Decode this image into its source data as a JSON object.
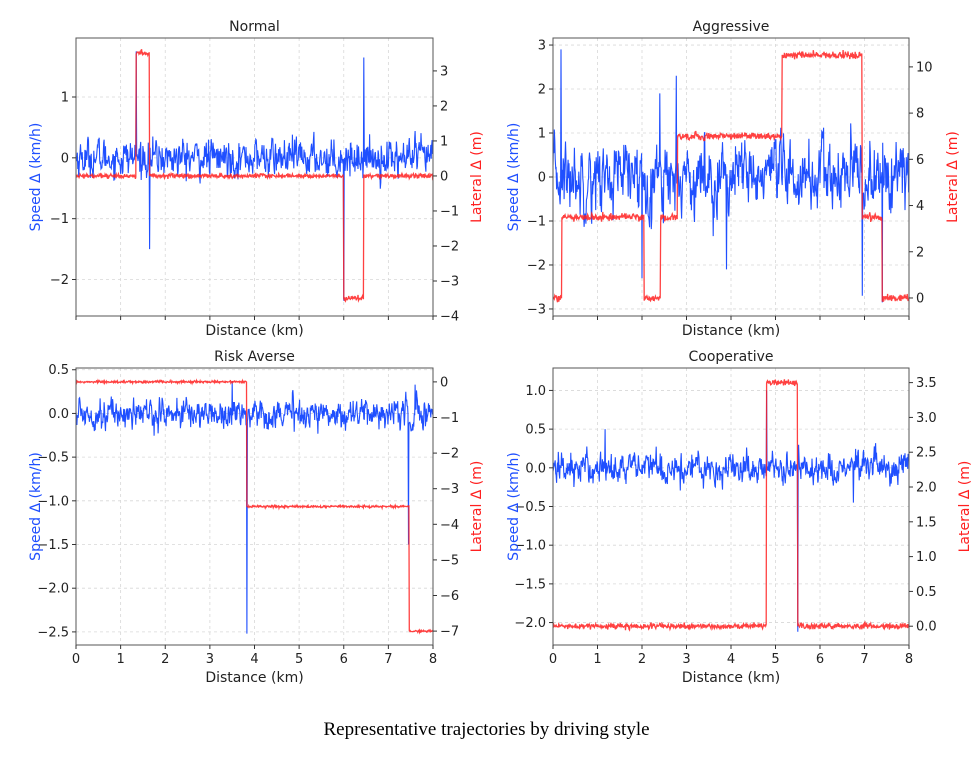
{
  "figure": {
    "caption": "Representative trajectories by driving style",
    "colors": {
      "speed": "#1f4fff",
      "lateral": "#ff2020",
      "axis": "#555555",
      "grid": "#d8d8d8"
    }
  },
  "chart_data": [
    {
      "type": "line",
      "title": "Normal",
      "xlabel": "Distance (km)",
      "ylabel": "Speed Δ (km/h)",
      "y2label": "Lateral Δ (m)",
      "xlim": [
        0,
        8
      ],
      "ylim": [
        -2.6,
        1.97
      ],
      "y2lim": [
        -4.0,
        3.94
      ],
      "xticks": [
        0,
        1,
        2,
        3,
        4,
        5,
        6,
        7,
        8
      ],
      "xtick_labels_visible": false,
      "yticks": [
        -2,
        -1,
        0,
        1
      ],
      "ytick_labels": [
        "−2",
        "−1",
        "0",
        "1"
      ],
      "y2ticks": [
        -4,
        -3,
        -2,
        -1,
        0,
        1,
        2,
        3
      ],
      "y2tick_labels": [
        "−4",
        "−3",
        "−2",
        "−1",
        "0",
        "1",
        "2",
        "3"
      ],
      "grid": true,
      "series": [
        {
          "name": "Speed Δ",
          "axis": "left",
          "color": "#1f4fff",
          "noise_amplitude": 0.25,
          "baseline": 0.0,
          "spikes": [
            {
              "x": 1.35,
              "y": 1.75
            },
            {
              "x": 1.65,
              "y": -1.5
            },
            {
              "x": 6.0,
              "y": -2.35
            },
            {
              "x": 6.45,
              "y": 1.65
            }
          ]
        },
        {
          "name": "Lateral Δ",
          "axis": "right",
          "color": "#ff2020",
          "noise_amplitude": 0.06,
          "segments": [
            {
              "x0": 0.0,
              "x1": 1.35,
              "y": 0.0
            },
            {
              "x0": 1.35,
              "x1": 1.65,
              "y": 3.5
            },
            {
              "x0": 1.65,
              "x1": 6.0,
              "y": 0.0
            },
            {
              "x0": 6.0,
              "x1": 6.45,
              "y": -3.5
            },
            {
              "x0": 6.45,
              "x1": 8.0,
              "y": 0.0
            }
          ]
        }
      ]
    },
    {
      "type": "line",
      "title": "Aggressive",
      "xlabel": "Distance (km)",
      "ylabel": "Speed Δ (km/h)",
      "y2label": "Lateral Δ (m)",
      "xlim": [
        0,
        8
      ],
      "ylim": [
        -3.16,
        3.16
      ],
      "y2lim": [
        -0.78,
        11.25
      ],
      "xticks": [
        0,
        1,
        2,
        3,
        4,
        5,
        6,
        7,
        8
      ],
      "xtick_labels_visible": false,
      "yticks": [
        -3,
        -2,
        -1,
        0,
        1,
        2,
        3
      ],
      "ytick_labels": [
        "−3",
        "−2",
        "−1",
        "0",
        "1",
        "2",
        "3"
      ],
      "y2ticks": [
        0,
        2,
        4,
        6,
        8,
        10
      ],
      "y2tick_labels": [
        "0",
        "2",
        "4",
        "6",
        "8",
        "10"
      ],
      "grid": true,
      "series": [
        {
          "name": "Speed Δ",
          "axis": "left",
          "color": "#1f4fff",
          "noise_amplitude": 0.65,
          "baseline": 0.0,
          "spikes": [
            {
              "x": 0.18,
              "y": 2.9
            },
            {
              "x": 2.0,
              "y": -2.3
            },
            {
              "x": 2.4,
              "y": 1.9
            },
            {
              "x": 2.77,
              "y": 2.3
            },
            {
              "x": 3.9,
              "y": -2.1
            },
            {
              "x": 6.95,
              "y": -2.7
            },
            {
              "x": 7.4,
              "y": -2.85
            }
          ]
        },
        {
          "name": "Lateral Δ",
          "axis": "right",
          "color": "#ff2020",
          "noise_amplitude": 0.15,
          "segments": [
            {
              "x0": 0.0,
              "x1": 0.2,
              "y": 0.0
            },
            {
              "x0": 0.2,
              "x1": 2.05,
              "y": 3.5
            },
            {
              "x0": 2.05,
              "x1": 2.42,
              "y": 0.0
            },
            {
              "x0": 2.42,
              "x1": 2.8,
              "y": 3.5
            },
            {
              "x0": 2.8,
              "x1": 5.15,
              "y": 7.0
            },
            {
              "x0": 5.15,
              "x1": 6.95,
              "y": 10.5
            },
            {
              "x0": 6.95,
              "x1": 7.4,
              "y": 3.5
            },
            {
              "x0": 7.4,
              "x1": 8.0,
              "y": 0.0
            }
          ]
        }
      ]
    },
    {
      "type": "line",
      "title": "Risk Averse",
      "xlabel": "Distance (km)",
      "ylabel": "Speed Δ (km/h)",
      "y2label": "Lateral Δ (m)",
      "xlim": [
        0,
        8
      ],
      "ylim": [
        -2.65,
        0.52
      ],
      "y2lim": [
        -7.39,
        0.39
      ],
      "xticks": [
        0,
        1,
        2,
        3,
        4,
        5,
        6,
        7,
        8
      ],
      "xtick_labels": [
        "0",
        "1",
        "2",
        "3",
        "4",
        "5",
        "6",
        "7",
        "8"
      ],
      "xtick_labels_visible": true,
      "yticks": [
        -2.5,
        -2.0,
        -1.5,
        -1.0,
        -0.5,
        0.0,
        0.5
      ],
      "ytick_labels": [
        "−2.5",
        "−2.0",
        "−1.5",
        "−1.0",
        "−0.5",
        "0.0",
        "0.5"
      ],
      "y2ticks": [
        -7,
        -6,
        -5,
        -4,
        -3,
        -2,
        -1,
        0
      ],
      "y2tick_labels": [
        "−7",
        "−6",
        "−5",
        "−4",
        "−3",
        "−2",
        "−1",
        "0"
      ],
      "grid": true,
      "series": [
        {
          "name": "Speed Δ",
          "axis": "left",
          "color": "#1f4fff",
          "noise_amplitude": 0.14,
          "baseline": 0.0,
          "spikes": [
            {
              "x": 3.5,
              "y": 0.37
            },
            {
              "x": 3.83,
              "y": -2.52
            },
            {
              "x": 7.45,
              "y": -1.5
            },
            {
              "x": 7.6,
              "y": 0.33
            }
          ]
        },
        {
          "name": "Lateral Δ",
          "axis": "right",
          "color": "#ff2020",
          "noise_amplitude": 0.03,
          "segments": [
            {
              "x0": 0.0,
              "x1": 3.83,
              "y": 0.0
            },
            {
              "x0": 3.83,
              "x1": 7.47,
              "y": -3.5
            },
            {
              "x0": 7.47,
              "x1": 8.0,
              "y": -7.0
            }
          ]
        }
      ]
    },
    {
      "type": "line",
      "title": "Cooperative",
      "xlabel": "Distance (km)",
      "ylabel": "Speed Δ (km/h)",
      "y2label": "Lateral Δ (m)",
      "xlim": [
        0,
        8
      ],
      "ylim": [
        -2.29,
        1.29
      ],
      "y2lim": [
        -0.27,
        3.71
      ],
      "xticks": [
        0,
        1,
        2,
        3,
        4,
        5,
        6,
        7,
        8
      ],
      "xtick_labels": [
        "0",
        "1",
        "2",
        "3",
        "4",
        "5",
        "6",
        "7",
        "8"
      ],
      "xtick_labels_visible": true,
      "yticks": [
        -2.0,
        -1.5,
        -1.0,
        -0.5,
        0.0,
        0.5,
        1.0
      ],
      "ytick_labels": [
        "−2.0",
        "−1.5",
        "−1.0",
        "−0.5",
        "0.0",
        "0.5",
        "1.0"
      ],
      "y2ticks": [
        0.0,
        0.5,
        1.0,
        1.5,
        2.0,
        2.5,
        3.0,
        3.5
      ],
      "y2tick_labels": [
        "0.0",
        "0.5",
        "1.0",
        "1.5",
        "2.0",
        "2.5",
        "3.0",
        "3.5"
      ],
      "grid": true,
      "series": [
        {
          "name": "Speed Δ",
          "axis": "left",
          "color": "#1f4fff",
          "noise_amplitude": 0.17,
          "baseline": 0.0,
          "spikes": [
            {
              "x": 1.17,
              "y": 0.5
            },
            {
              "x": 4.8,
              "y": 1.0
            },
            {
              "x": 5.5,
              "y": -2.12
            },
            {
              "x": 6.75,
              "y": -0.45
            }
          ]
        },
        {
          "name": "Lateral Δ",
          "axis": "right",
          "color": "#ff2020",
          "noise_amplitude": 0.04,
          "segments": [
            {
              "x0": 0.0,
              "x1": 4.8,
              "y": 0.0
            },
            {
              "x0": 4.8,
              "x1": 5.5,
              "y": 3.5
            },
            {
              "x0": 5.5,
              "x1": 8.0,
              "y": 0.0
            }
          ]
        }
      ]
    }
  ]
}
